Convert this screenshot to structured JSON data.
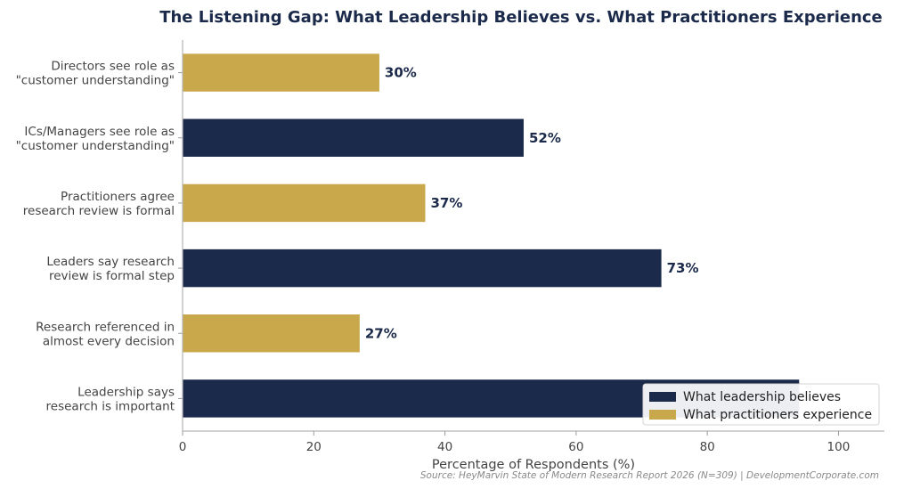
{
  "chart_data": {
    "type": "bar",
    "orientation": "horizontal",
    "title": "The Listening Gap: What Leadership Believes vs. What Practitioners Experience",
    "xlabel": "Percentage of Respondents (%)",
    "ylabel": "",
    "xlim": [
      0,
      107
    ],
    "xticks": [
      0,
      20,
      40,
      60,
      80,
      100
    ],
    "grid": false,
    "legend_position": "bottom-right",
    "source": "Source: HeyMarvin State of Modern Research Report 2026 (N=309) | DevelopmentCorporate.com",
    "series": [
      {
        "name": "What leadership believes",
        "color": "#1b2a4a"
      },
      {
        "name": "What practitioners experience",
        "color": "#c9a84c"
      }
    ],
    "bars": [
      {
        "label_lines": [
          "Directors see role as",
          "\"customer understanding\""
        ],
        "value": 30,
        "series": 1,
        "value_label": "30%"
      },
      {
        "label_lines": [
          "ICs/Managers see role as",
          "\"customer understanding\""
        ],
        "value": 52,
        "series": 0,
        "value_label": "52%"
      },
      {
        "label_lines": [
          "Practitioners agree",
          "research review is formal"
        ],
        "value": 37,
        "series": 1,
        "value_label": "37%"
      },
      {
        "label_lines": [
          "Leaders say research",
          "review is formal step"
        ],
        "value": 73,
        "series": 0,
        "value_label": "73%"
      },
      {
        "label_lines": [
          "Research referenced in",
          "almost every decision"
        ],
        "value": 27,
        "series": 1,
        "value_label": "27%"
      },
      {
        "label_lines": [
          "Leadership says",
          "research is important"
        ],
        "value": 94,
        "series": 0,
        "value_label": ""
      }
    ]
  }
}
